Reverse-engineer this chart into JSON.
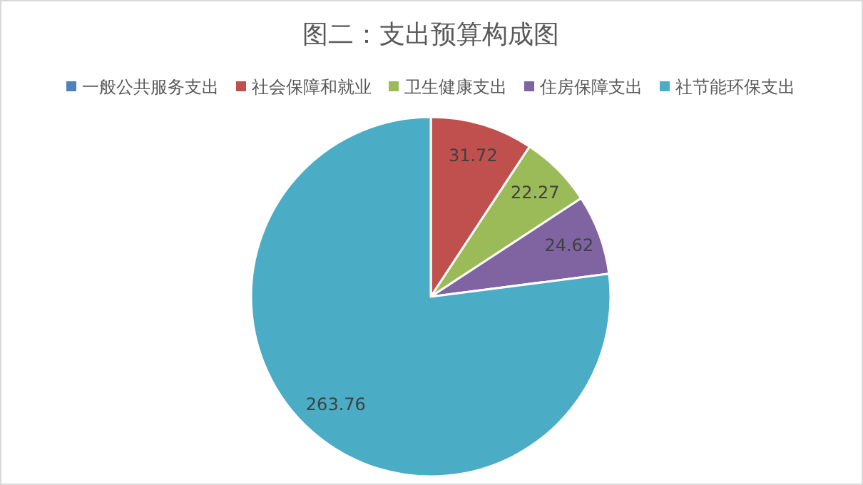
{
  "chart_data": {
    "type": "pie",
    "title": "图二：支出预算构成图",
    "categories": [
      "一般公共服务支出",
      "社会保障和就业",
      "卫生健康支出",
      "住房保障支出",
      "社节能环保支出"
    ],
    "values": [
      0,
      31.72,
      22.27,
      24.62,
      263.76
    ],
    "value_labels": [
      null,
      "31.72",
      "22.27",
      "24.62",
      "263.76"
    ],
    "colors": [
      "#4f81bd",
      "#c0504d",
      "#9bbb59",
      "#8064a2",
      "#4bacc6"
    ],
    "legend": "top"
  }
}
